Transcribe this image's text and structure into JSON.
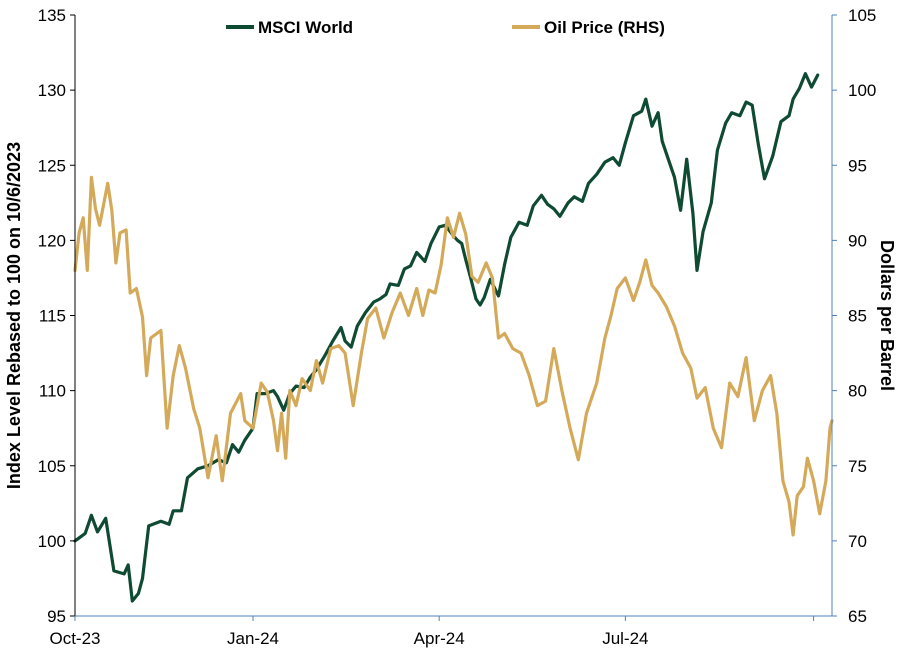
{
  "chart_data": {
    "type": "line",
    "title": "",
    "x_ticks": [
      "Oct-23",
      "Jan-24",
      "Apr-24",
      "Jul-24"
    ],
    "ylabel": "Index Level Rebased to 100 on 10/6/2023",
    "y2label": "Dollars per Barrel",
    "ylim": [
      95,
      135
    ],
    "y2lim": [
      65,
      105
    ],
    "y_ticks": [
      95,
      100,
      105,
      110,
      115,
      120,
      125,
      130,
      135
    ],
    "y2_ticks": [
      65,
      70,
      75,
      80,
      85,
      90,
      95,
      100,
      105
    ],
    "legend_position": "top-center",
    "grid": false,
    "x_start": "2023-10-06",
    "series": [
      {
        "name": "MSCI World",
        "axis": "left",
        "color": "#0f4a32",
        "points": [
          [
            "2023-10-06",
            100.0
          ],
          [
            "2023-10-11",
            100.5
          ],
          [
            "2023-10-14",
            101.7
          ],
          [
            "2023-10-17",
            100.6
          ],
          [
            "2023-10-21",
            101.5
          ],
          [
            "2023-10-25",
            98.0
          ],
          [
            "2023-10-30",
            97.8
          ],
          [
            "2023-11-01",
            98.4
          ],
          [
            "2023-11-03",
            96.0
          ],
          [
            "2023-11-06",
            96.5
          ],
          [
            "2023-11-08",
            97.5
          ],
          [
            "2023-11-11",
            101.0
          ],
          [
            "2023-11-17",
            101.3
          ],
          [
            "2023-11-21",
            101.1
          ],
          [
            "2023-11-23",
            102.0
          ],
          [
            "2023-11-27",
            102.0
          ],
          [
            "2023-11-30",
            104.2
          ],
          [
            "2023-12-05",
            104.8
          ],
          [
            "2023-12-10",
            105.0
          ],
          [
            "2023-12-15",
            105.4
          ],
          [
            "2023-12-19",
            105.2
          ],
          [
            "2023-12-22",
            106.4
          ],
          [
            "2023-12-25",
            105.9
          ],
          [
            "2023-12-28",
            106.7
          ],
          [
            "2024-01-01",
            107.5
          ],
          [
            "2024-01-03",
            109.8
          ],
          [
            "2024-01-07",
            109.8
          ],
          [
            "2024-01-11",
            110.0
          ],
          [
            "2024-01-13",
            109.6
          ],
          [
            "2024-01-16",
            108.7
          ],
          [
            "2024-01-19",
            109.8
          ],
          [
            "2024-01-22",
            110.3
          ],
          [
            "2024-01-26",
            110.2
          ],
          [
            "2024-01-29",
            110.9
          ],
          [
            "2024-02-01",
            111.4
          ],
          [
            "2024-02-05",
            112.3
          ],
          [
            "2024-02-09",
            113.3
          ],
          [
            "2024-02-13",
            114.2
          ],
          [
            "2024-02-15",
            113.3
          ],
          [
            "2024-02-18",
            112.9
          ],
          [
            "2024-02-21",
            114.3
          ],
          [
            "2024-02-25",
            115.2
          ],
          [
            "2024-02-29",
            115.9
          ],
          [
            "2024-03-03",
            116.1
          ],
          [
            "2024-03-06",
            116.4
          ],
          [
            "2024-03-08",
            117.1
          ],
          [
            "2024-03-12",
            117.0
          ],
          [
            "2024-03-15",
            118.1
          ],
          [
            "2024-03-18",
            118.3
          ],
          [
            "2024-03-21",
            119.2
          ],
          [
            "2024-03-25",
            118.6
          ],
          [
            "2024-03-28",
            119.8
          ],
          [
            "2024-04-01",
            120.9
          ],
          [
            "2024-04-04",
            121.0
          ],
          [
            "2024-04-08",
            120.3
          ],
          [
            "2024-04-10",
            120.0
          ],
          [
            "2024-04-12",
            119.8
          ],
          [
            "2024-04-14",
            118.7
          ],
          [
            "2024-04-16",
            117.7
          ],
          [
            "2024-04-19",
            116.1
          ],
          [
            "2024-04-21",
            115.7
          ],
          [
            "2024-04-23",
            116.2
          ],
          [
            "2024-04-26",
            117.4
          ],
          [
            "2024-04-30",
            116.3
          ],
          [
            "2024-05-03",
            118.4
          ],
          [
            "2024-05-06",
            120.2
          ],
          [
            "2024-05-10",
            121.2
          ],
          [
            "2024-05-14",
            121.0
          ],
          [
            "2024-05-17",
            122.3
          ],
          [
            "2024-05-21",
            123.0
          ],
          [
            "2024-05-24",
            122.4
          ],
          [
            "2024-05-27",
            122.1
          ],
          [
            "2024-05-30",
            121.6
          ],
          [
            "2024-06-03",
            122.5
          ],
          [
            "2024-06-06",
            122.9
          ],
          [
            "2024-06-10",
            122.6
          ],
          [
            "2024-06-13",
            123.8
          ],
          [
            "2024-06-17",
            124.4
          ],
          [
            "2024-06-21",
            125.2
          ],
          [
            "2024-06-25",
            125.5
          ],
          [
            "2024-06-28",
            125.0
          ],
          [
            "2024-07-01",
            126.5
          ],
          [
            "2024-07-05",
            128.3
          ],
          [
            "2024-07-09",
            128.6
          ],
          [
            "2024-07-11",
            129.4
          ],
          [
            "2024-07-14",
            127.6
          ],
          [
            "2024-07-17",
            128.5
          ],
          [
            "2024-07-19",
            126.6
          ],
          [
            "2024-07-22",
            125.4
          ],
          [
            "2024-07-25",
            124.2
          ],
          [
            "2024-07-28",
            122.0
          ],
          [
            "2024-07-31",
            125.4
          ],
          [
            "2024-08-03",
            121.8
          ],
          [
            "2024-08-05",
            118.0
          ],
          [
            "2024-08-08",
            120.6
          ],
          [
            "2024-08-12",
            122.5
          ],
          [
            "2024-08-15",
            126.0
          ],
          [
            "2024-08-19",
            127.8
          ],
          [
            "2024-08-22",
            128.5
          ],
          [
            "2024-08-26",
            128.3
          ],
          [
            "2024-08-29",
            129.2
          ],
          [
            "2024-09-01",
            129.0
          ],
          [
            "2024-09-04",
            126.4
          ],
          [
            "2024-09-07",
            124.1
          ],
          [
            "2024-09-11",
            125.6
          ],
          [
            "2024-09-15",
            127.9
          ],
          [
            "2024-09-19",
            128.3
          ],
          [
            "2024-09-21",
            129.4
          ],
          [
            "2024-09-24",
            130.1
          ],
          [
            "2024-09-27",
            131.1
          ],
          [
            "2024-09-30",
            130.2
          ],
          [
            "2024-10-03",
            131.0
          ]
        ]
      },
      {
        "name": "Oil Price (RHS)",
        "axis": "right",
        "color": "#d4aa5a",
        "points": [
          [
            "2023-10-06",
            88.0
          ],
          [
            "2023-10-08",
            90.5
          ],
          [
            "2023-10-10",
            91.5
          ],
          [
            "2023-10-12",
            88.0
          ],
          [
            "2023-10-14",
            94.2
          ],
          [
            "2023-10-16",
            92.1
          ],
          [
            "2023-10-18",
            91.0
          ],
          [
            "2023-10-22",
            93.8
          ],
          [
            "2023-10-24",
            92.0
          ],
          [
            "2023-10-26",
            88.5
          ],
          [
            "2023-10-28",
            90.5
          ],
          [
            "2023-10-31",
            90.7
          ],
          [
            "2023-11-02",
            86.5
          ],
          [
            "2023-11-05",
            86.8
          ],
          [
            "2023-11-08",
            84.9
          ],
          [
            "2023-11-10",
            81.0
          ],
          [
            "2023-11-12",
            83.5
          ],
          [
            "2023-11-15",
            83.8
          ],
          [
            "2023-11-17",
            84.0
          ],
          [
            "2023-11-20",
            77.5
          ],
          [
            "2023-11-23",
            81.0
          ],
          [
            "2023-11-26",
            83.0
          ],
          [
            "2023-11-29",
            81.5
          ],
          [
            "2023-12-03",
            78.8
          ],
          [
            "2023-12-06",
            77.5
          ],
          [
            "2023-12-10",
            74.2
          ],
          [
            "2023-12-14",
            77.0
          ],
          [
            "2023-12-17",
            74.0
          ],
          [
            "2023-12-21",
            78.5
          ],
          [
            "2023-12-26",
            79.8
          ],
          [
            "2023-12-28",
            78.0
          ],
          [
            "2024-01-01",
            77.5
          ],
          [
            "2024-01-05",
            80.5
          ],
          [
            "2024-01-08",
            79.9
          ],
          [
            "2024-01-11",
            78.0
          ],
          [
            "2024-01-13",
            76.0
          ],
          [
            "2024-01-15",
            78.5
          ],
          [
            "2024-01-17",
            75.5
          ],
          [
            "2024-01-19",
            80.0
          ],
          [
            "2024-01-22",
            79.0
          ],
          [
            "2024-01-25",
            80.8
          ],
          [
            "2024-01-29",
            80.0
          ],
          [
            "2024-02-01",
            82.0
          ],
          [
            "2024-02-04",
            80.5
          ],
          [
            "2024-02-08",
            82.8
          ],
          [
            "2024-02-12",
            83.0
          ],
          [
            "2024-02-15",
            82.5
          ],
          [
            "2024-02-19",
            79.0
          ],
          [
            "2024-02-23",
            82.5
          ],
          [
            "2024-02-26",
            84.8
          ],
          [
            "2024-03-01",
            85.5
          ],
          [
            "2024-03-05",
            83.5
          ],
          [
            "2024-03-09",
            85.2
          ],
          [
            "2024-03-13",
            86.5
          ],
          [
            "2024-03-17",
            85.0
          ],
          [
            "2024-03-21",
            86.8
          ],
          [
            "2024-03-24",
            85.0
          ],
          [
            "2024-03-27",
            86.7
          ],
          [
            "2024-03-30",
            86.5
          ],
          [
            "2024-04-02",
            88.4
          ],
          [
            "2024-04-05",
            91.5
          ],
          [
            "2024-04-08",
            90.2
          ],
          [
            "2024-04-11",
            91.8
          ],
          [
            "2024-04-14",
            90.4
          ],
          [
            "2024-04-17",
            87.6
          ],
          [
            "2024-04-20",
            87.2
          ],
          [
            "2024-04-24",
            88.5
          ],
          [
            "2024-04-27",
            87.5
          ],
          [
            "2024-04-30",
            83.5
          ],
          [
            "2024-05-03",
            83.8
          ],
          [
            "2024-05-07",
            82.8
          ],
          [
            "2024-05-11",
            82.5
          ],
          [
            "2024-05-15",
            81.0
          ],
          [
            "2024-05-19",
            79.0
          ],
          [
            "2024-05-23",
            79.3
          ],
          [
            "2024-05-27",
            82.8
          ],
          [
            "2024-05-31",
            80.0
          ],
          [
            "2024-06-04",
            77.5
          ],
          [
            "2024-06-08",
            75.4
          ],
          [
            "2024-06-12",
            78.5
          ],
          [
            "2024-06-17",
            80.5
          ],
          [
            "2024-06-21",
            83.5
          ],
          [
            "2024-06-24",
            85.0
          ],
          [
            "2024-06-27",
            86.8
          ],
          [
            "2024-07-01",
            87.5
          ],
          [
            "2024-07-05",
            86.0
          ],
          [
            "2024-07-08",
            87.2
          ],
          [
            "2024-07-11",
            88.7
          ],
          [
            "2024-07-14",
            87.0
          ],
          [
            "2024-07-17",
            86.5
          ],
          [
            "2024-07-21",
            85.6
          ],
          [
            "2024-07-25",
            84.3
          ],
          [
            "2024-07-29",
            82.5
          ],
          [
            "2024-08-02",
            81.5
          ],
          [
            "2024-08-05",
            79.5
          ],
          [
            "2024-08-09",
            80.2
          ],
          [
            "2024-08-13",
            77.5
          ],
          [
            "2024-08-17",
            76.2
          ],
          [
            "2024-08-21",
            80.5
          ],
          [
            "2024-08-25",
            79.6
          ],
          [
            "2024-08-29",
            82.2
          ],
          [
            "2024-09-02",
            78.0
          ],
          [
            "2024-09-06",
            80.0
          ],
          [
            "2024-09-10",
            81.0
          ],
          [
            "2024-09-13",
            78.5
          ],
          [
            "2024-09-16",
            74.0
          ],
          [
            "2024-09-19",
            72.6
          ],
          [
            "2024-09-21",
            70.4
          ],
          [
            "2024-09-23",
            73.0
          ],
          [
            "2024-09-26",
            73.6
          ],
          [
            "2024-09-28",
            75.5
          ],
          [
            "2024-10-01",
            74.0
          ],
          [
            "2024-10-04",
            71.8
          ],
          [
            "2024-10-07",
            74.0
          ],
          [
            "2024-10-09",
            77.5
          ],
          [
            "2024-10-10",
            78.0
          ]
        ]
      }
    ]
  }
}
